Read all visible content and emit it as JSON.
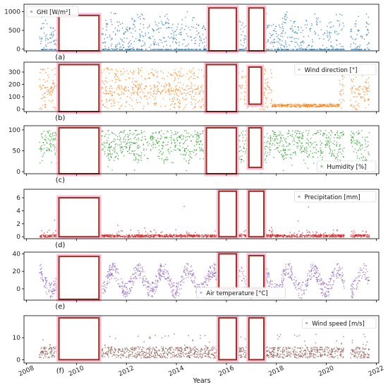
{
  "chart_data": [
    {
      "type": "scatter",
      "panel_label": "(a)",
      "series": [
        {
          "name": "GHI [W/m²]",
          "color": "#1f77b4"
        }
      ],
      "yticks": [
        0,
        500,
        1000
      ],
      "ylim": [
        -50,
        1200
      ],
      "legend_position": "top-left",
      "signal": {
        "kind": "seasonal",
        "base": 0,
        "amp": 1000,
        "min_top": 450,
        "gap_floor": 0
      },
      "gaps": [
        [
          2009.2,
          2010.1
        ],
        [
          2010.1,
          2010.5
        ]
      ],
      "highlight_boxes": [
        [
          2009.3,
          2010.9,
          -50,
          900
        ],
        [
          2015.3,
          2016.4,
          -50,
          1100
        ],
        [
          2016.9,
          2017.5,
          -50,
          1100
        ]
      ]
    },
    {
      "type": "scatter",
      "panel_label": "(b)",
      "series": [
        {
          "name": "Wind direction [°]",
          "color": "#ff7f0e"
        }
      ],
      "yticks": [
        0,
        100,
        200,
        300
      ],
      "ylim": [
        -20,
        380
      ],
      "legend_position": "top-right",
      "signal": {
        "kind": "wind_dir"
      },
      "highlight_boxes": [
        [
          2009.3,
          2010.9,
          -20,
          360
        ],
        [
          2015.2,
          2016.4,
          -20,
          360
        ],
        [
          2016.9,
          2017.4,
          40,
          340
        ]
      ]
    },
    {
      "type": "scatter",
      "panel_label": "(c)",
      "series": [
        {
          "name": "Humidity [%]",
          "color": "#2ca02c"
        }
      ],
      "yticks": [
        0,
        50,
        100
      ],
      "ylim": [
        -5,
        110
      ],
      "legend_position": "bottom-right",
      "signal": {
        "kind": "humidity"
      },
      "highlight_boxes": [
        [
          2009.3,
          2010.9,
          -5,
          105
        ],
        [
          2015.2,
          2016.4,
          -5,
          105
        ],
        [
          2016.9,
          2017.4,
          10,
          105
        ]
      ]
    },
    {
      "type": "scatter",
      "panel_label": "(d)",
      "series": [
        {
          "name": "Precipitation [mm]",
          "color": "#d62728"
        }
      ],
      "yticks": [
        0,
        2,
        4,
        6
      ],
      "ylim": [
        -0.3,
        7.3
      ],
      "legend_position": "top-right",
      "signal": {
        "kind": "precip"
      },
      "highlight_boxes": [
        [
          2009.3,
          2010.9,
          0,
          6
        ],
        [
          2015.7,
          2016.4,
          0,
          7
        ],
        [
          2016.9,
          2017.5,
          0,
          7
        ]
      ]
    },
    {
      "type": "scatter",
      "panel_label": "(e)",
      "series": [
        {
          "name": "Air temperature [°C]",
          "color": "#9467bd"
        }
      ],
      "yticks": [
        0,
        20,
        40
      ],
      "ylim": [
        -13,
        42
      ],
      "legend_position": "bottom-center",
      "signal": {
        "kind": "temp"
      },
      "highlight_boxes": [
        [
          2009.3,
          2010.9,
          -12,
          37
        ],
        [
          2015.7,
          2016.4,
          0,
          40
        ],
        [
          2016.9,
          2017.5,
          0,
          38
        ]
      ]
    },
    {
      "type": "scatter",
      "panel_label": "(f)",
      "series": [
        {
          "name": "Wind speed [m/s]",
          "color": "#8c564b"
        }
      ],
      "yticks": [
        0,
        10
      ],
      "ylim": [
        -1.5,
        20
      ],
      "legend_position": "top-right",
      "signal": {
        "kind": "wind_speed"
      },
      "highlight_boxes": [
        [
          2009.3,
          2010.9,
          0,
          19
        ],
        [
          2015.7,
          2016.4,
          0,
          19
        ],
        [
          2016.9,
          2017.5,
          0,
          19
        ]
      ]
    }
  ],
  "x_axis": {
    "xlim": [
      2007.9,
      2022.1
    ],
    "ticks": [
      2008,
      2010,
      2012,
      2014,
      2016,
      2018,
      2020,
      2022
    ],
    "ticklabels": [
      "2008",
      "2010",
      "2012",
      "2014",
      "2016",
      "2018",
      "2020",
      "2022"
    ],
    "label": "Years"
  },
  "data_range": [
    2008.5,
    2021.7
  ]
}
